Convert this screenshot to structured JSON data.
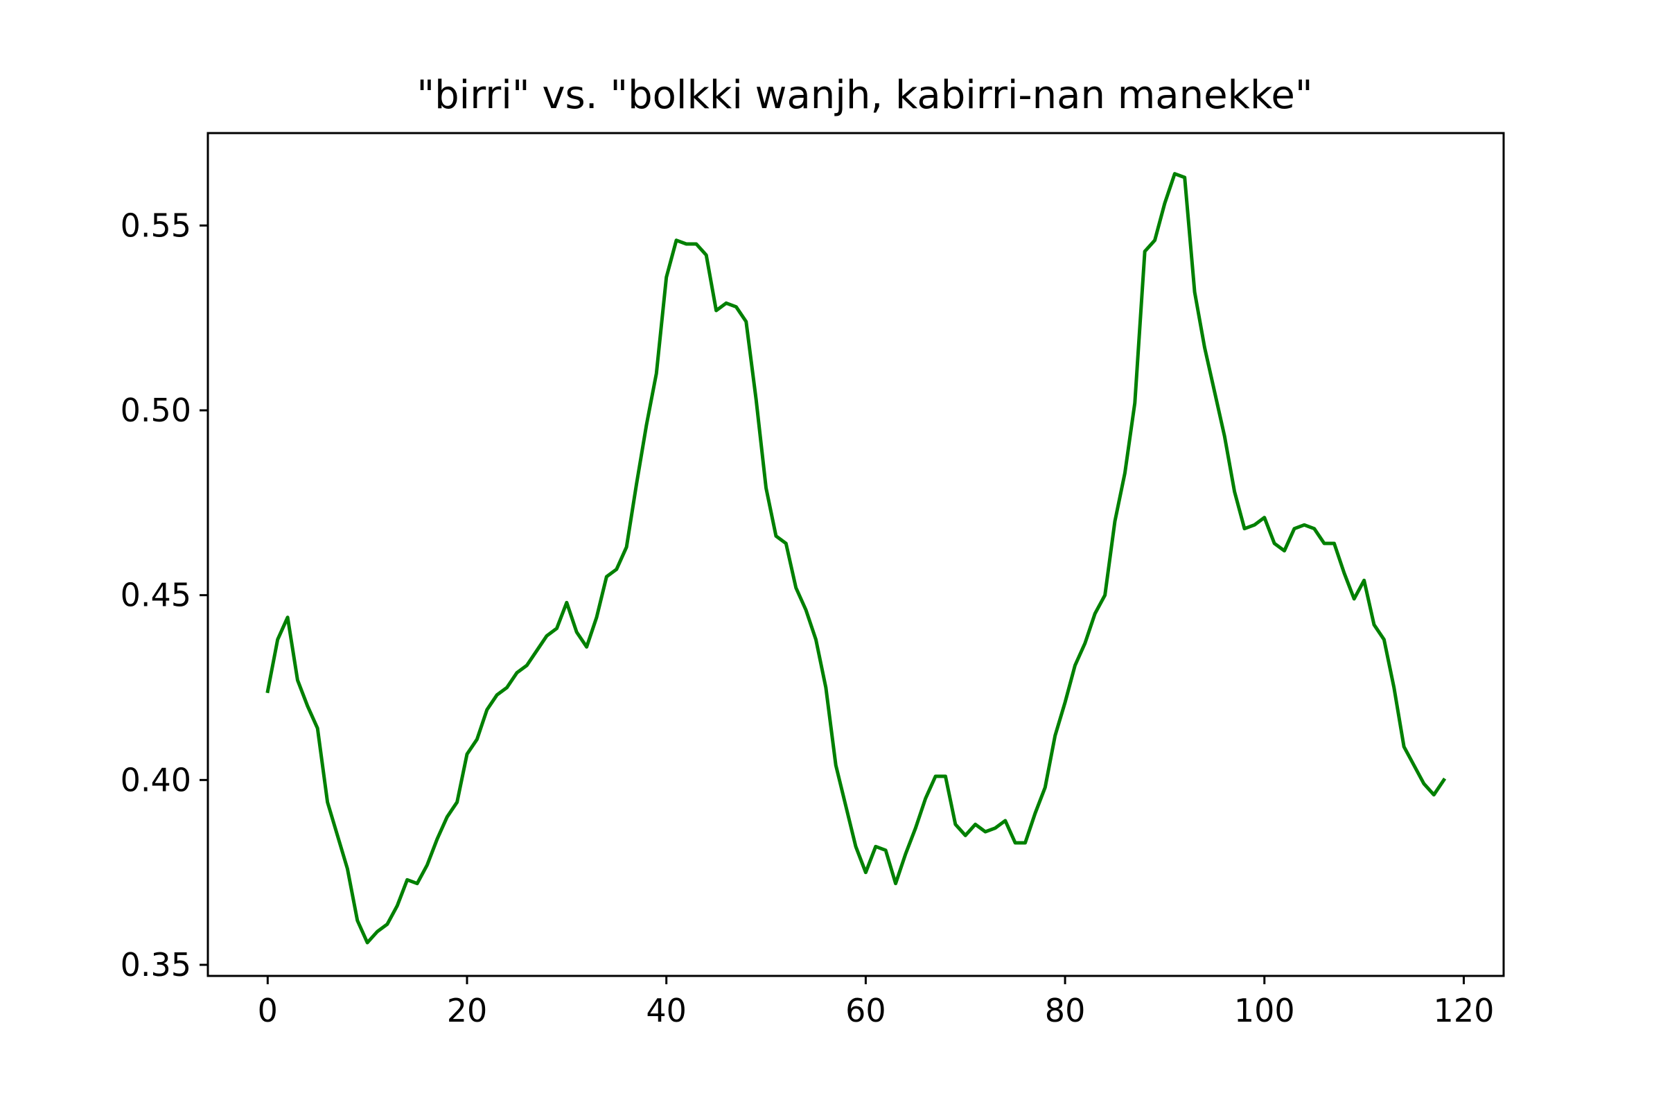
{
  "chart_data": {
    "type": "line",
    "title": "\"birri\" vs. \"bolkki wanjh, kabirri-nan manekke\"",
    "xlabel": "",
    "ylabel": "",
    "xlim": [
      -6,
      124
    ],
    "ylim": [
      0.347,
      0.575
    ],
    "x_ticks": [
      0,
      20,
      40,
      60,
      80,
      100,
      120
    ],
    "y_ticks": [
      0.35,
      0.4,
      0.45,
      0.5,
      0.55
    ],
    "x_tick_labels": [
      "0",
      "20",
      "40",
      "60",
      "80",
      "100",
      "120"
    ],
    "y_tick_labels": [
      "0.35",
      "0.40",
      "0.45",
      "0.50",
      "0.55"
    ],
    "grid": false,
    "legend": "none",
    "series": [
      {
        "color": "#008000",
        "x": [
          0,
          1,
          2,
          3,
          4,
          5,
          6,
          7,
          8,
          9,
          10,
          11,
          12,
          13,
          14,
          15,
          16,
          17,
          18,
          19,
          20,
          21,
          22,
          23,
          24,
          25,
          26,
          27,
          28,
          29,
          30,
          31,
          32,
          33,
          34,
          35,
          36,
          37,
          38,
          39,
          40,
          41,
          42,
          43,
          44,
          45,
          46,
          47,
          48,
          49,
          50,
          51,
          52,
          53,
          54,
          55,
          56,
          57,
          58,
          59,
          60,
          61,
          62,
          63,
          64,
          65,
          66,
          67,
          68,
          69,
          70,
          71,
          72,
          73,
          74,
          75,
          76,
          77,
          78,
          79,
          80,
          81,
          82,
          83,
          84,
          85,
          86,
          87,
          88,
          89,
          90,
          91,
          92,
          93,
          94,
          95,
          96,
          97,
          98,
          99,
          100,
          101,
          102,
          103,
          104,
          105,
          106,
          107,
          108,
          109,
          110,
          111,
          112,
          113,
          114,
          115,
          116,
          117,
          118
        ],
        "y": [
          0.424,
          0.438,
          0.444,
          0.427,
          0.42,
          0.414,
          0.394,
          0.385,
          0.376,
          0.362,
          0.356,
          0.359,
          0.361,
          0.366,
          0.373,
          0.372,
          0.377,
          0.384,
          0.39,
          0.394,
          0.407,
          0.411,
          0.419,
          0.423,
          0.425,
          0.429,
          0.431,
          0.435,
          0.439,
          0.441,
          0.448,
          0.44,
          0.436,
          0.444,
          0.455,
          0.457,
          0.463,
          0.48,
          0.496,
          0.51,
          0.536,
          0.546,
          0.545,
          0.545,
          0.542,
          0.527,
          0.529,
          0.528,
          0.524,
          0.503,
          0.479,
          0.466,
          0.464,
          0.452,
          0.446,
          0.438,
          0.425,
          0.404,
          0.393,
          0.382,
          0.375,
          0.382,
          0.381,
          0.372,
          0.38,
          0.387,
          0.395,
          0.401,
          0.401,
          0.388,
          0.385,
          0.388,
          0.386,
          0.387,
          0.389,
          0.383,
          0.383,
          0.391,
          0.398,
          0.412,
          0.421,
          0.431,
          0.437,
          0.445,
          0.45,
          0.47,
          0.483,
          0.502,
          0.543,
          0.546,
          0.556,
          0.564,
          0.563,
          0.532,
          0.517,
          0.505,
          0.493,
          0.478,
          0.468,
          0.469,
          0.471,
          0.464,
          0.462,
          0.468,
          0.469,
          0.468,
          0.464,
          0.464,
          0.456,
          0.449,
          0.454,
          0.442,
          0.438,
          0.425,
          0.409,
          0.404,
          0.399,
          0.396,
          0.4
        ]
      }
    ]
  }
}
